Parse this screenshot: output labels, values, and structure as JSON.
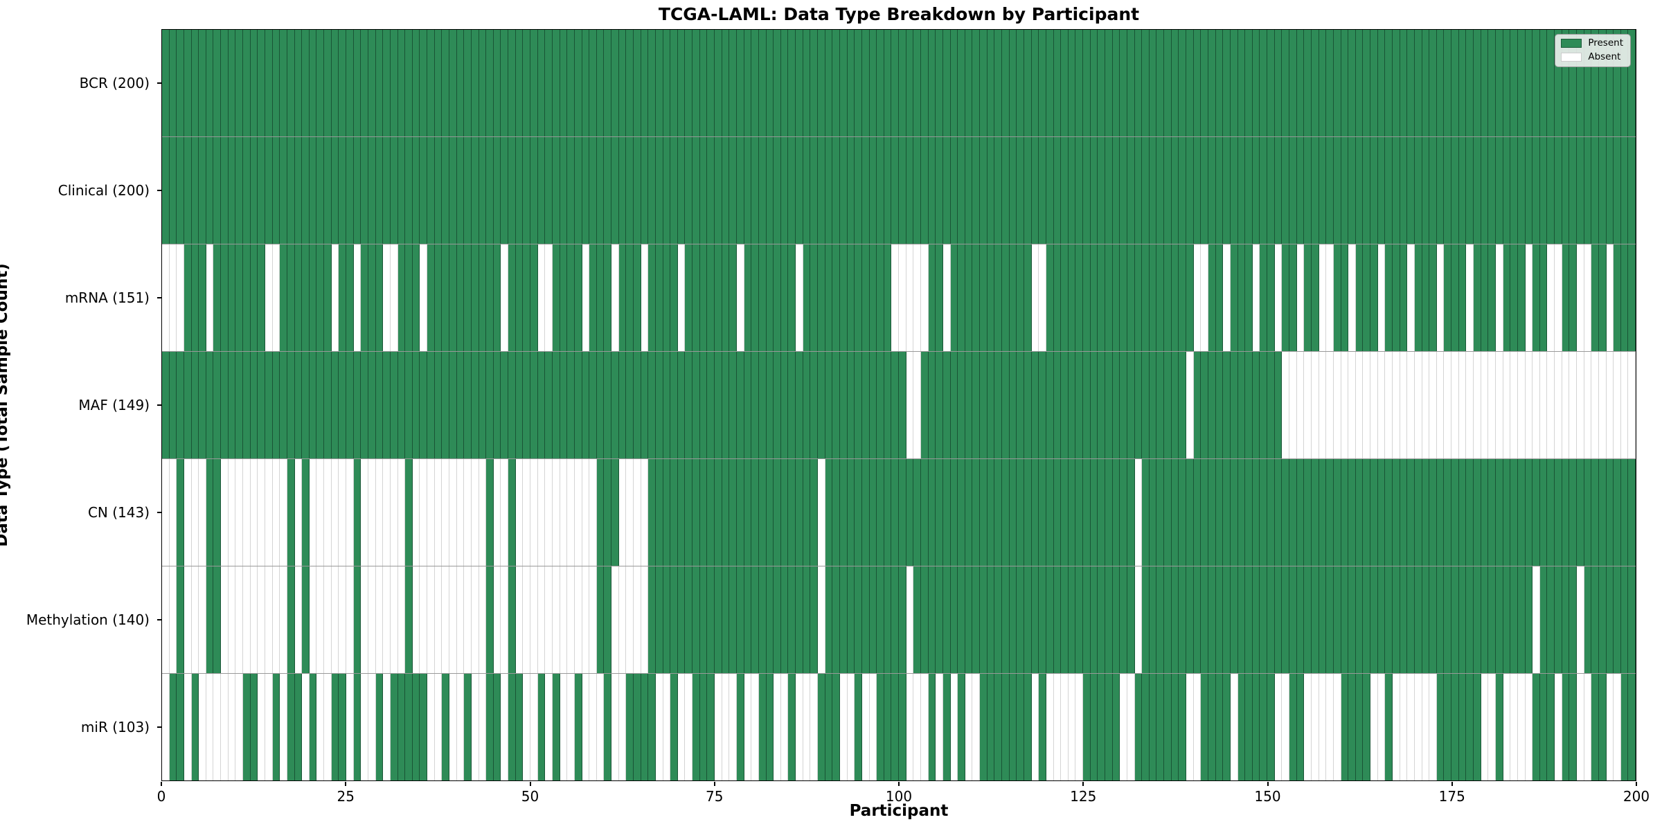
{
  "chart_data": {
    "type": "heatmap",
    "title": "TCGA-LAML: Data Type Breakdown by Participant",
    "xlabel": "Participant",
    "ylabel": "Data Type (Total Sample Count)",
    "n_participants": 200,
    "xlim": [
      0,
      200
    ],
    "x_ticks": [
      0,
      25,
      50,
      75,
      100,
      125,
      150,
      175,
      200
    ],
    "grid": false,
    "legend_position": "upper right",
    "legend": [
      {
        "label": "Present",
        "color": "#2e8b57"
      },
      {
        "label": "Absent",
        "color": "#ffffff"
      }
    ],
    "colors": {
      "present": "#2e8b57",
      "absent": "#ffffff",
      "cell_edge_on_green": "rgba(10,40,25,0.55)",
      "cell_edge_on_white": "#d4d4d4",
      "plot_border": "#000000"
    },
    "value_encoding": {
      "1": "Present",
      "0": "Absent"
    },
    "rows": [
      {
        "name": "BCR",
        "label": "BCR (200)",
        "count": 200,
        "pattern": "11111111111111111111111111111111111111111111111111111111111111111111111111111111111111111111111111111111111111111111111111111111111111111111111111111111111111111111111111111111111111111111111111111111"
      },
      {
        "name": "Clinical",
        "label": "Clinical (200)",
        "count": 200,
        "pattern": "11111111111111111111111111111111111111111111111111111111111111111111111111111111111111111111111111111111111111111111111111111111111111111111111111111111111111111111111111111111111111111111111111111111"
      },
      {
        "name": "mRNA",
        "label": "mRNA (151)",
        "count": 151,
        "pattern": "00011101111111001111111011011100111011111111110111100111101110111011110111111101111111011111111111100000110111111111110011111111111111111111001101110110110110011011101110111011101110111011001100110111"
      },
      {
        "name": "MAF",
        "label": "MAF (149)",
        "count": 149,
        "pattern": "11111111111111111111111111111111111111111111111111111111111111111111111111111111111111111111111111111001111111111111111111111111111111111110111111111111000000000000000000000000000000000000000000000000"
      },
      {
        "name": "CN",
        "label": "CN (143)",
        "count": 143,
        "pattern": "00100011000000000101000000100000010000000000100100000000000111000011111111111111111111111011111111111111111111111111111111111111111101111111111111111111111111111111111111111111111111111111111111111111"
      },
      {
        "name": "Methylation",
        "label": "Methylation (140)",
        "count": 140,
        "pattern": "00100011000000000101000000100000010000000000100100000000000110000011111111111111111111111011111111111011111111111111111111111111111101111111111111111111111111111111111111111111111111111101111101111111"
      },
      {
        "name": "miR",
        "label": "miR (103)",
        "count": 103,
        "pattern": "01101000000110010110100110100101111100100100110110010100100010011110010011100010011001000111001001111000101010011111110100000111110011111110011110111110011000001111001000000111111001000011101100110011"
      }
    ]
  }
}
